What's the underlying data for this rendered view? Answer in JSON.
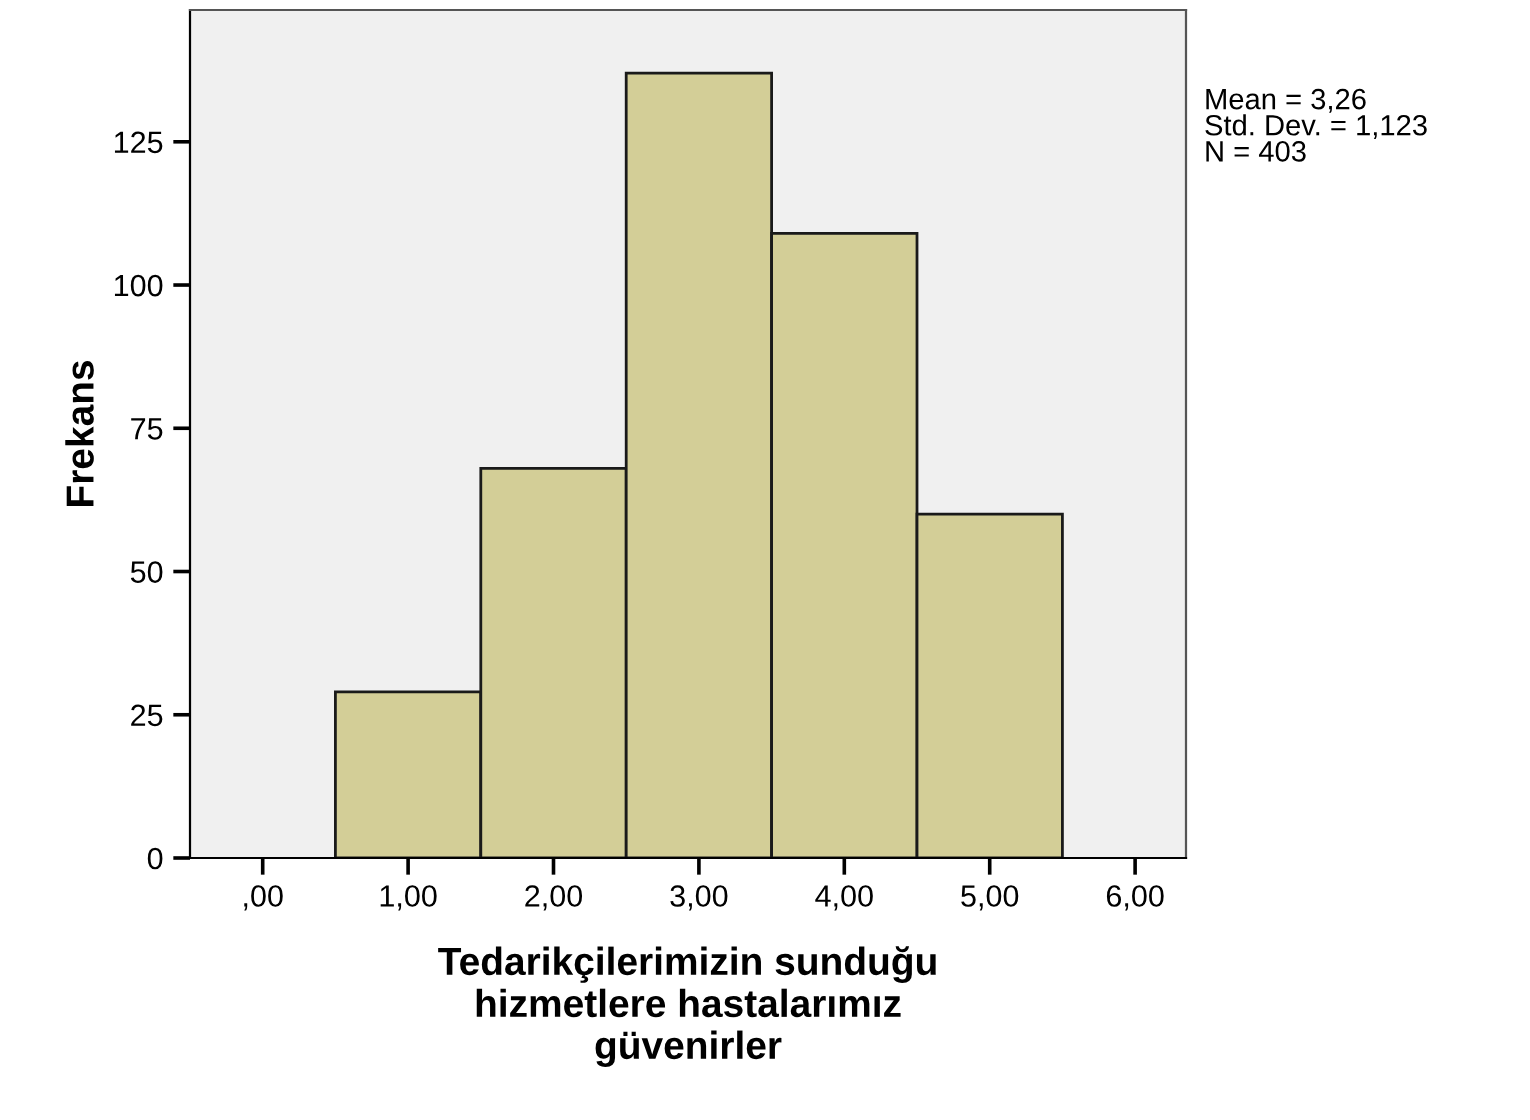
{
  "chart_data": {
    "type": "histogram",
    "xlabel": "Tedarikçilerimizin sunduğu\nhizmetlere hastalarımız\ngüvenirler",
    "ylabel": "Frekans",
    "bins": [
      0.5,
      1.5,
      2.5,
      3.5,
      4.5,
      5.5
    ],
    "values": [
      29,
      68,
      137,
      109,
      60
    ],
    "color": "#d3ce97",
    "xlim": [
      -0.5,
      6.35
    ],
    "xticks": [
      {
        "value": 0,
        "label": ",00"
      },
      {
        "value": 1,
        "label": "1,00"
      },
      {
        "value": 2,
        "label": "2,00"
      },
      {
        "value": 3,
        "label": "3,00"
      },
      {
        "value": 4,
        "label": "4,00"
      },
      {
        "value": 5,
        "label": "5,00"
      },
      {
        "value": 6,
        "label": "6,00"
      }
    ],
    "ylim": [
      0,
      148
    ],
    "yticks": [
      0,
      25,
      50,
      75,
      100,
      125
    ],
    "annotations": [
      "Mean = 3,26\nStd. Dev. = 1,123\nN = 403"
    ],
    "grid": false
  }
}
